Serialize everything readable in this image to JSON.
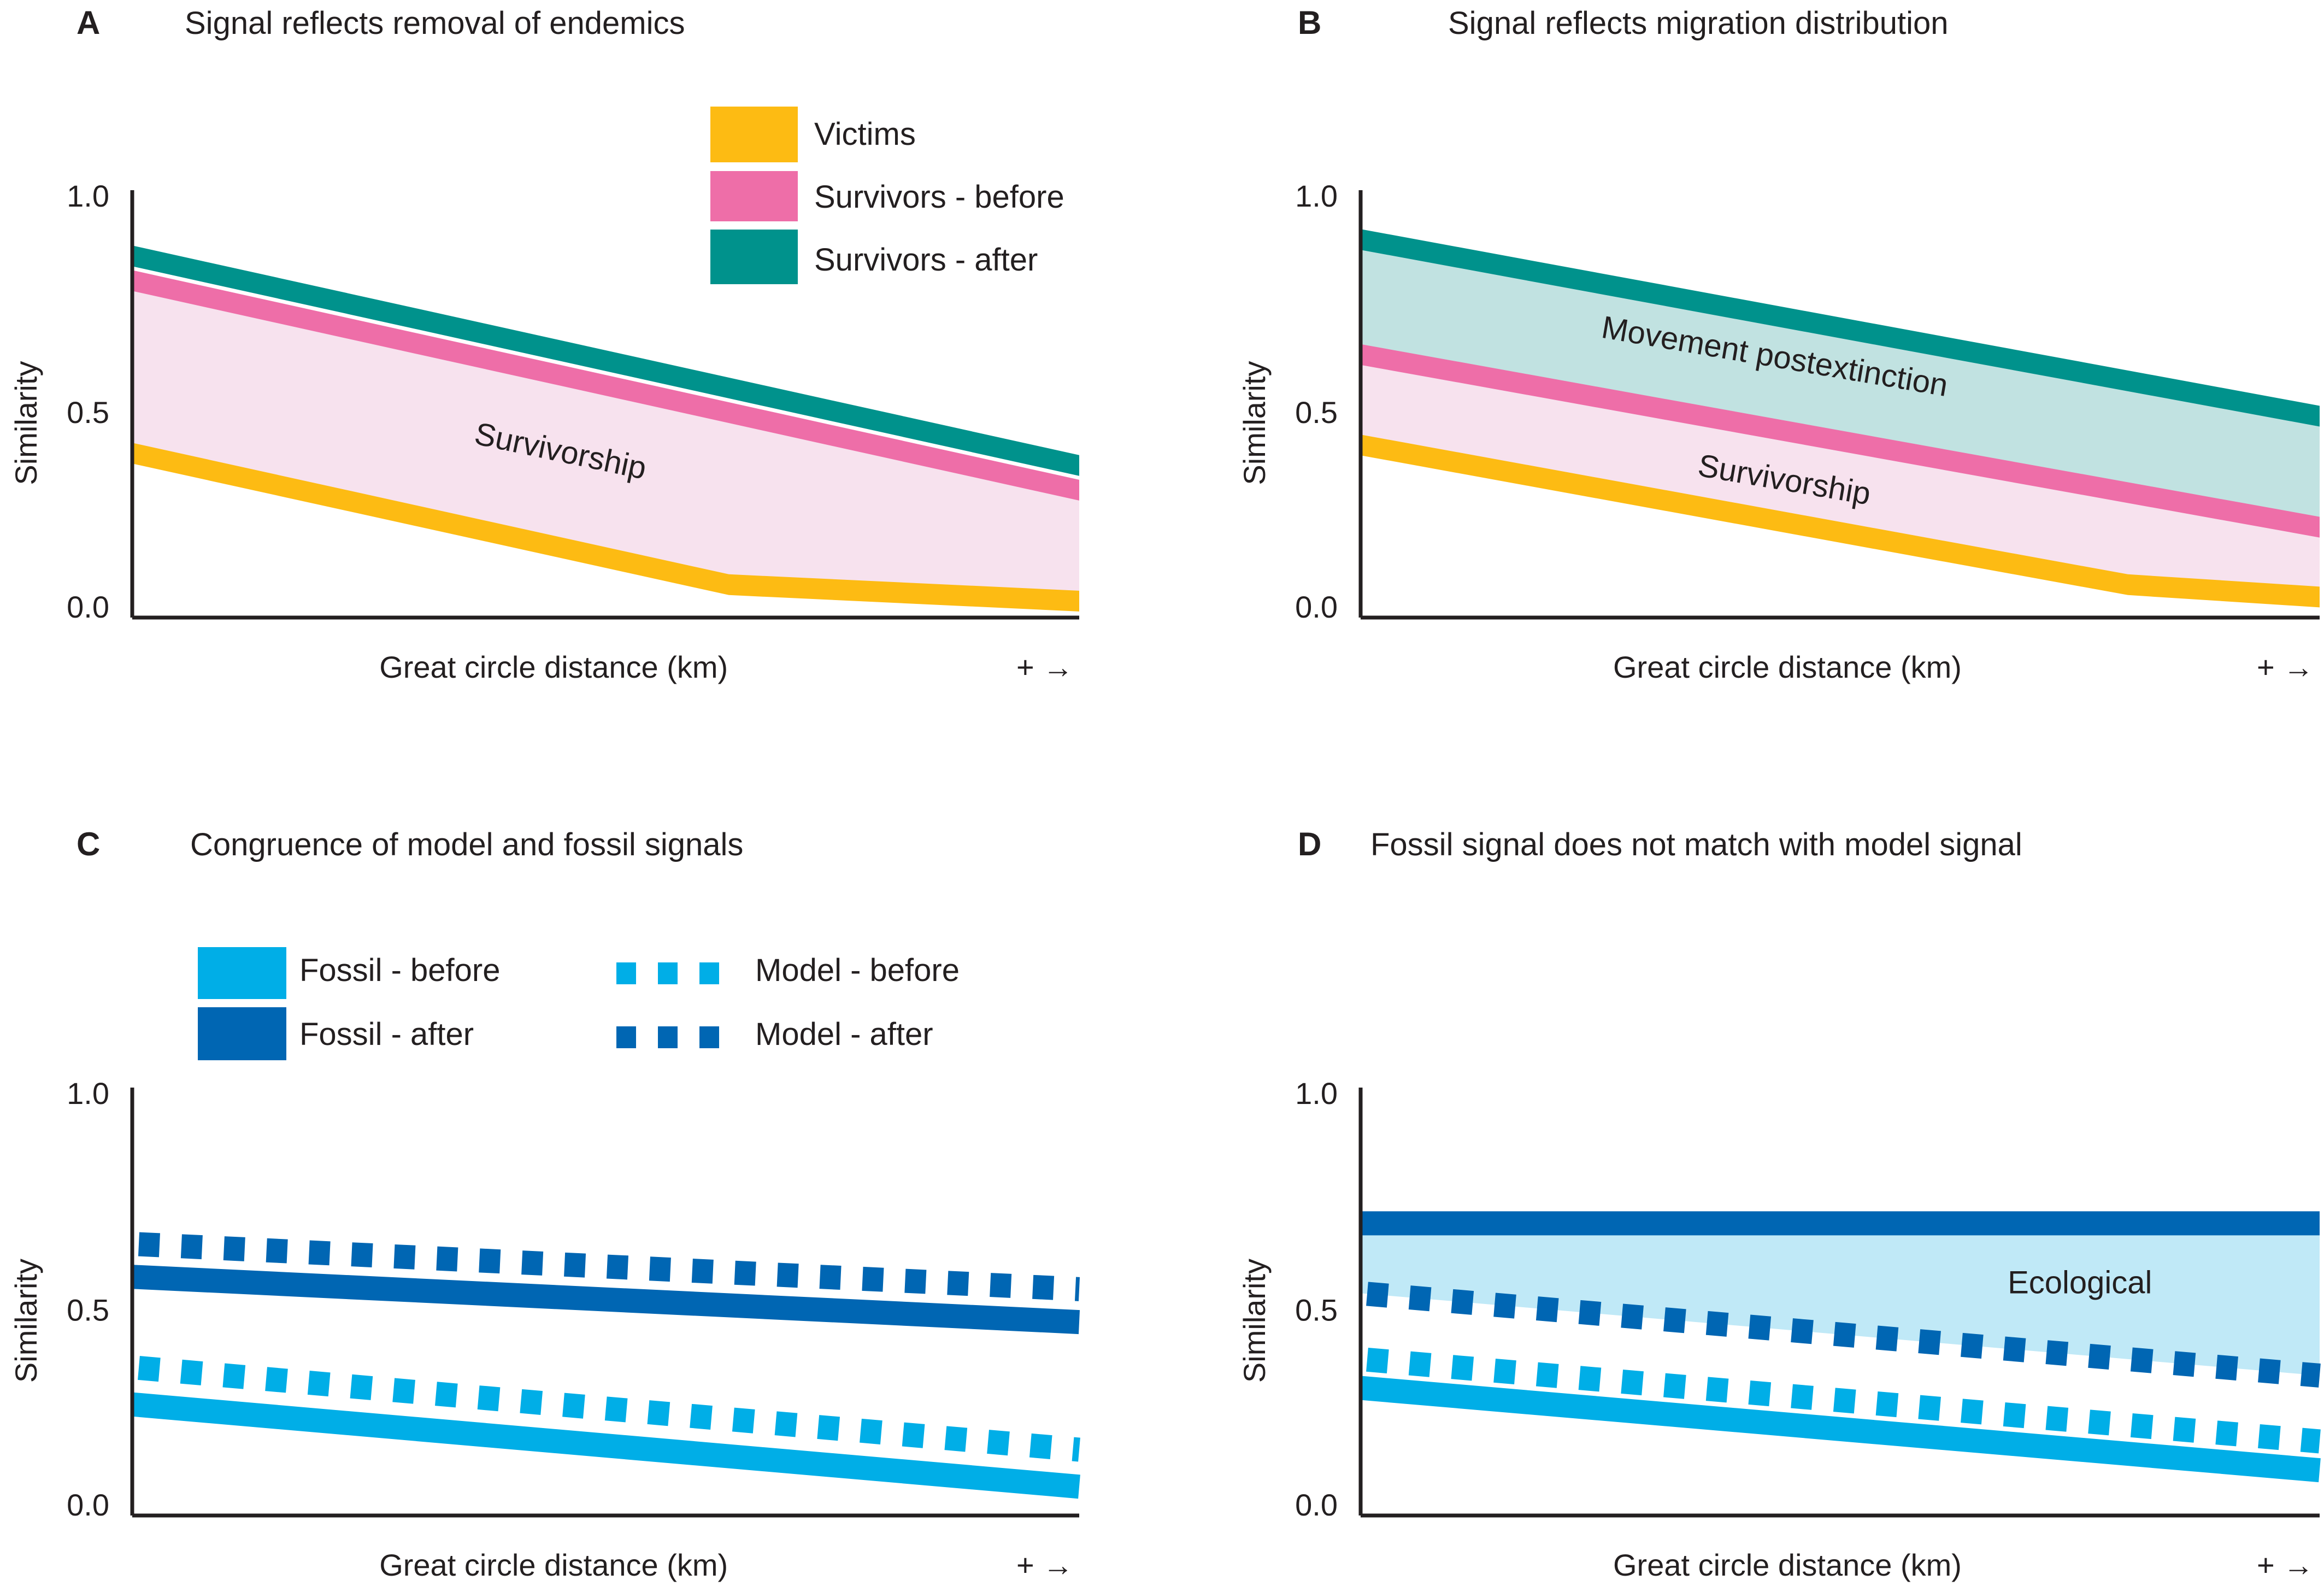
{
  "colors": {
    "victims": "#fdbb13",
    "survivors_before": "#ee6ea8",
    "survivors_after": "#00928c",
    "survivorship_fill": "#f7e2ee",
    "movement_fill": "#c1e2e1",
    "fossil_before": "#00aee7",
    "fossil_after": "#0066b3",
    "ecological_fill": "#c0e9f7",
    "axis": "#231f20"
  },
  "common": {
    "ylabel": "Similarity",
    "xlabel": "Great circle distance (km)",
    "xarrow": "+ →",
    "yticks": [
      "0.0",
      "0.5",
      "1.0"
    ]
  },
  "legend_ab": {
    "victims": "Victims",
    "survivors_before": "Survivors - before",
    "survivors_after": "Survivors - after"
  },
  "legend_cd": {
    "fossil_before": "Fossil - before",
    "fossil_after": "Fossil - after",
    "model_before": "Model - before",
    "model_after": "Model - after"
  },
  "chart_data": [
    {
      "panel": "A",
      "title": "Signal reflects removal of endemics",
      "type": "area",
      "xlabel": "Great circle distance (km)",
      "ylabel": "Similarity",
      "ylim": [
        0,
        1
      ],
      "xlim": [
        0,
        1
      ],
      "annotations": [
        {
          "text": "Survivorship",
          "x": 0.45,
          "y": 0.38
        }
      ],
      "series": [
        {
          "name": "Victims",
          "x": [
            0,
            0.63,
            1
          ],
          "values": [
            0.4,
            0.08,
            0.04
          ]
        },
        {
          "name": "Survivors - before",
          "x": [
            0,
            1
          ],
          "values": [
            0.82,
            0.31
          ]
        },
        {
          "name": "Survivors - after",
          "x": [
            0,
            1
          ],
          "values": [
            0.88,
            0.37
          ]
        }
      ]
    },
    {
      "panel": "B",
      "title": "Signal reflects migration distribution",
      "type": "area",
      "xlabel": "Great circle distance (km)",
      "ylabel": "Similarity",
      "ylim": [
        0,
        1
      ],
      "xlim": [
        0,
        1
      ],
      "annotations": [
        {
          "text": "Movement postextinction",
          "x": 0.43,
          "y": 0.61
        },
        {
          "text": "Survivorship",
          "x": 0.44,
          "y": 0.31
        }
      ],
      "series": [
        {
          "name": "Victims",
          "x": [
            0,
            0.8,
            1
          ],
          "values": [
            0.42,
            0.08,
            0.05
          ]
        },
        {
          "name": "Survivors - before",
          "x": [
            0,
            1
          ],
          "values": [
            0.64,
            0.22
          ]
        },
        {
          "name": "Survivors - after",
          "x": [
            0,
            1
          ],
          "values": [
            0.92,
            0.49
          ]
        }
      ]
    },
    {
      "panel": "C",
      "title": "Congruence of model and fossil signals",
      "type": "line",
      "xlabel": "Great circle distance (km)",
      "ylabel": "Similarity",
      "ylim": [
        0,
        1
      ],
      "xlim": [
        0,
        1
      ],
      "annotations": [],
      "series": [
        {
          "name": "Fossil - before",
          "x": [
            0,
            1
          ],
          "values": [
            0.27,
            0.07
          ]
        },
        {
          "name": "Fossil - after",
          "x": [
            0,
            1
          ],
          "values": [
            0.58,
            0.47
          ]
        },
        {
          "name": "Model - before",
          "x": [
            0,
            1
          ],
          "values": [
            0.36,
            0.16
          ]
        },
        {
          "name": "Model - after",
          "x": [
            0,
            1
          ],
          "values": [
            0.66,
            0.55
          ]
        }
      ]
    },
    {
      "panel": "D",
      "title": "Fossil signal does not match with model signal",
      "type": "line",
      "xlabel": "Great circle distance (km)",
      "ylabel": "Similarity",
      "ylim": [
        0,
        1
      ],
      "xlim": [
        0,
        1
      ],
      "annotations": [
        {
          "text": "Ecological",
          "x": 0.75,
          "y": 0.54
        }
      ],
      "series": [
        {
          "name": "Fossil - before",
          "x": [
            0,
            1
          ],
          "values": [
            0.31,
            0.11
          ]
        },
        {
          "name": "Fossil - after",
          "x": [
            0,
            1
          ],
          "values": [
            0.71,
            0.71
          ]
        },
        {
          "name": "Model - before",
          "x": [
            0,
            1
          ],
          "values": [
            0.38,
            0.18
          ]
        },
        {
          "name": "Model - after",
          "x": [
            0,
            1
          ],
          "values": [
            0.54,
            0.34
          ]
        }
      ]
    }
  ]
}
